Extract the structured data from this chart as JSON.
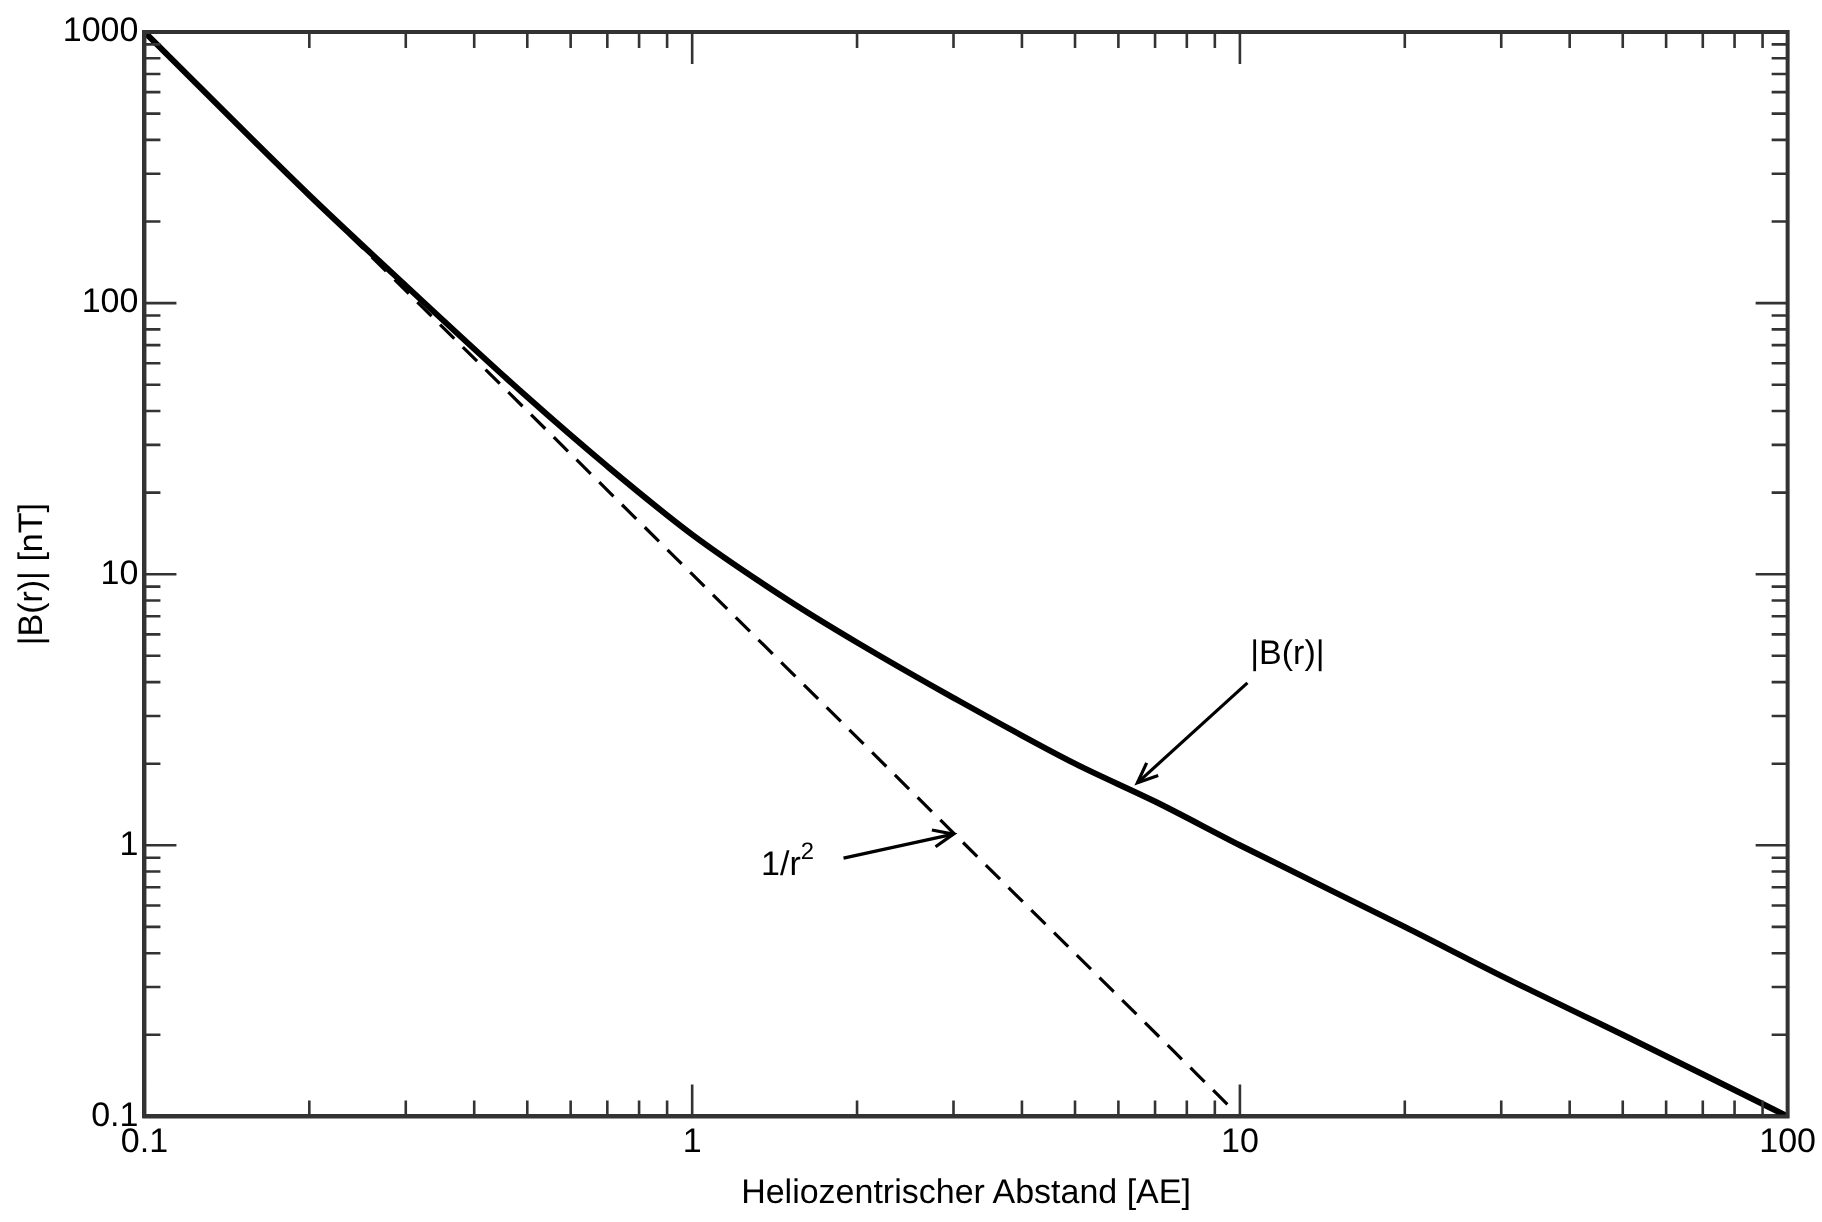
{
  "chart_data": {
    "type": "line",
    "xlabel": "Heliozentrischer Abstand [AE]",
    "ylabel": "|B(r)| [nT]",
    "log": "xy",
    "grid": false,
    "legend": false,
    "marker": "none",
    "xlim": [
      0.1,
      100
    ],
    "ylim": [
      0.1,
      1000
    ],
    "xticks": [
      0.1,
      {
        "value": 0.2,
        "label": null
      },
      {
        "value": 0.3,
        "label": null
      },
      {
        "value": 0.4,
        "label": null
      },
      {
        "value": 0.5,
        "label": null
      },
      {
        "value": 0.6,
        "label": null
      },
      {
        "value": 0.7,
        "label": null
      },
      {
        "value": 0.8,
        "label": null
      },
      {
        "value": 0.9,
        "label": null
      },
      1,
      {
        "value": 2,
        "label": null
      },
      {
        "value": 3,
        "label": null
      },
      {
        "value": 4,
        "label": null
      },
      {
        "value": 5,
        "label": null
      },
      {
        "value": 6,
        "label": null
      },
      {
        "value": 7,
        "label": null
      },
      {
        "value": 8,
        "label": null
      },
      {
        "value": 9,
        "label": null
      },
      10,
      {
        "value": 20,
        "label": null
      },
      {
        "value": 30,
        "label": null
      },
      {
        "value": 40,
        "label": null
      },
      {
        "value": 50,
        "label": null
      },
      {
        "value": 60,
        "label": null
      },
      {
        "value": 70,
        "label": null
      },
      {
        "value": 80,
        "label": null
      },
      {
        "value": 90,
        "label": null
      },
      100
    ],
    "yticks": [
      0.1,
      {
        "value": 0.2,
        "label": null
      },
      {
        "value": 0.3,
        "label": null
      },
      {
        "value": 0.4,
        "label": null
      },
      {
        "value": 0.5,
        "label": null
      },
      {
        "value": 0.6,
        "label": null
      },
      {
        "value": 0.7,
        "label": null
      },
      {
        "value": 0.8,
        "label": null
      },
      {
        "value": 0.9,
        "label": null
      },
      1,
      {
        "value": 2,
        "label": null
      },
      {
        "value": 3,
        "label": null
      },
      {
        "value": 4,
        "label": null
      },
      {
        "value": 5,
        "label": null
      },
      {
        "value": 6,
        "label": null
      },
      {
        "value": 7,
        "label": null
      },
      {
        "value": 8,
        "label": null
      },
      {
        "value": 9,
        "label": null
      },
      10,
      {
        "value": 20,
        "label": null
      },
      {
        "value": 30,
        "label": null
      },
      {
        "value": 40,
        "label": null
      },
      {
        "value": 50,
        "label": null
      },
      {
        "value": 60,
        "label": null
      },
      {
        "value": 70,
        "label": null
      },
      {
        "value": 80,
        "label": null
      },
      {
        "value": 90,
        "label": null
      },
      100,
      {
        "value": 200,
        "label": null
      },
      {
        "value": 300,
        "label": null
      },
      {
        "value": 400,
        "label": null
      },
      {
        "value": 500,
        "label": null
      },
      {
        "value": 600,
        "label": null
      },
      {
        "value": 700,
        "label": null
      },
      {
        "value": 800,
        "label": null
      },
      {
        "value": 900,
        "label": null
      },
      1000
    ],
    "series": [
      {
        "color": "#000000",
        "line_style": "solid",
        "x": [
          0.1,
          0.2,
          0.3,
          0.5,
          0.7,
          1,
          1.5,
          2,
          3,
          5,
          7,
          10,
          20,
          30,
          50,
          70,
          100
        ],
        "values": [
          1000,
          250,
          116,
          45,
          25,
          14,
          8.0,
          5.6,
          3.5,
          2.0,
          1.45,
          1.0,
          0.5,
          0.33,
          0.2,
          0.143,
          0.1
        ]
      },
      {
        "color": "#000000",
        "line_style": "dashed",
        "x": [
          0.1,
          1,
          9.7
        ],
        "values": [
          1000,
          10,
          0.106
        ]
      }
    ],
    "annotations": [
      {
        "text": "|B(r)|",
        "x": 6.5,
        "y": 1.7
      },
      {
        "text": "1/r$^{2}$",
        "x": 3,
        "y": 1.1
      }
    ]
  }
}
